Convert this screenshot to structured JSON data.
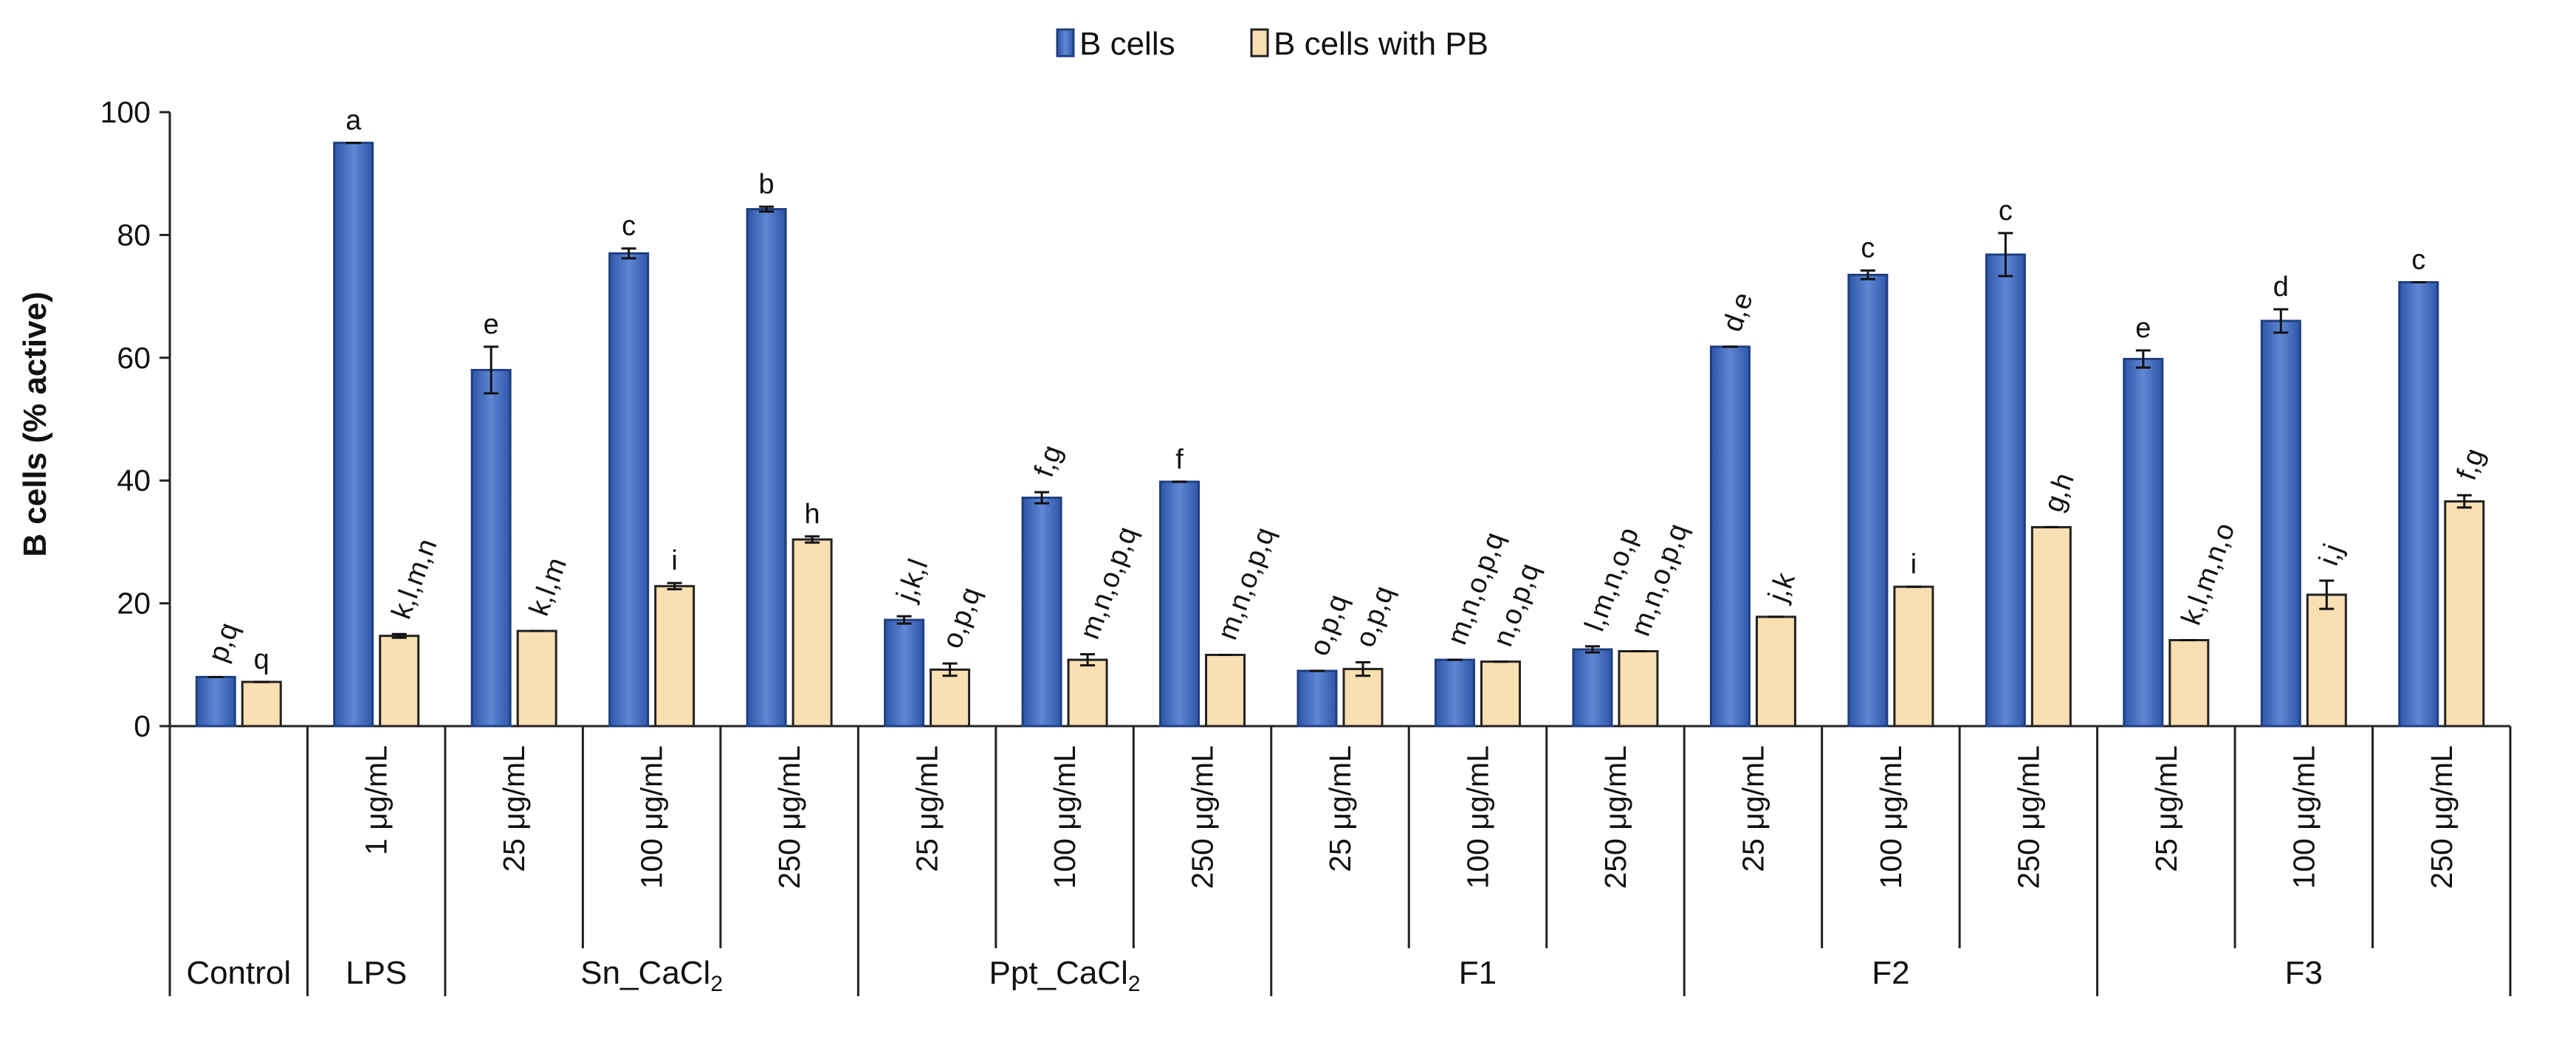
{
  "chart_data": {
    "type": "bar",
    "ylabel": "B cells (% active)",
    "ylim": [
      0,
      100
    ],
    "yticks": [
      0,
      20,
      40,
      60,
      80,
      100
    ],
    "legend": {
      "position": "top-center"
    },
    "series": [
      {
        "name": "B cells",
        "color": "#4472C4",
        "values": [
          8,
          95,
          58,
          77,
          84.2,
          17.3,
          37.2,
          39.8,
          9,
          10.8,
          12.5,
          61.8,
          73.5,
          76.8,
          59.8,
          66,
          72.3
        ],
        "errors": [
          0,
          0,
          3.8,
          0.8,
          0.4,
          0.6,
          0.9,
          0,
          0,
          0,
          0.5,
          0,
          0.7,
          3.5,
          1.4,
          1.9,
          0
        ],
        "labels": [
          "p,q",
          "a",
          "e",
          "c",
          "b",
          "j,k,l",
          "f,g",
          "f",
          "o,p,q",
          "m,n,o,p,q",
          "l,m,n,o,p",
          "d,e",
          "c",
          "c",
          "e",
          "d",
          "c"
        ]
      },
      {
        "name": "B cells with PB",
        "color": "#F9DFB1",
        "values": [
          7.2,
          14.7,
          15.5,
          22.8,
          30.4,
          9.2,
          10.8,
          11.6,
          9.3,
          10.5,
          12.2,
          17.8,
          22.7,
          32.4,
          14,
          21.4,
          36.6
        ],
        "errors": [
          0,
          0.3,
          0,
          0.5,
          0.5,
          1,
          0.9,
          0,
          1.1,
          0,
          0,
          0,
          0,
          0,
          0,
          2.3,
          1
        ],
        "labels": [
          "q",
          "k,l,m,n",
          "k,l,m",
          "i",
          "h",
          "o,p,q",
          "m,n,o,p,q",
          "m,n,o,p,q",
          "o,p,q",
          "n,o,p,q",
          "m,n,o,p,q",
          "j,k",
          "i",
          "g,h",
          "k,l,m,n,o",
          "i,j",
          "f,g"
        ]
      }
    ],
    "categories": [
      "",
      "1 μg/mL",
      "25 μg/mL",
      "100 μg/mL",
      "250 μg/mL",
      "25 μg/mL",
      "100 μg/mL",
      "250 μg/mL",
      "25 μg/mL",
      "100 μg/mL",
      "250 μg/mL",
      "25 μg/mL",
      "100 μg/mL",
      "250 μg/mL",
      "25 μg/mL",
      "100 μg/mL",
      "250 μg/mL"
    ],
    "groups": [
      {
        "label": "Control",
        "sub": "",
        "start": 0,
        "end": 0
      },
      {
        "label": "LPS",
        "sub": "",
        "start": 1,
        "end": 1
      },
      {
        "label": "Sn_CaCl",
        "sub": "2",
        "start": 2,
        "end": 4
      },
      {
        "label": "Ppt_CaCl",
        "sub": "2",
        "start": 5,
        "end": 7
      },
      {
        "label": "F1",
        "sub": "",
        "start": 8,
        "end": 10
      },
      {
        "label": "F2",
        "sub": "",
        "start": 11,
        "end": 13
      },
      {
        "label": "F3",
        "sub": "",
        "start": 14,
        "end": 16
      }
    ]
  }
}
